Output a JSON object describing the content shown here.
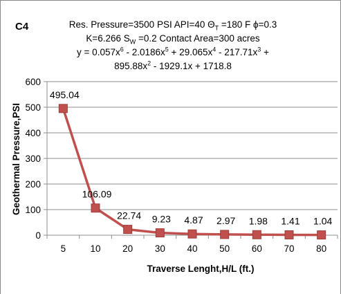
{
  "panel_label": "C4",
  "title_lines": {
    "l1_a": "Res. Pressure=3500 PSI API=40 Θ",
    "l1_sub": "T",
    "l1_b": " =180 F ϕ=0.3",
    "l2_a": "K=6.266   S",
    "l2_sub": "W",
    "l2_b": " =0.2 Contact Area=300 acres",
    "l3_a": "y = 0.057x",
    "l3_s1": "6",
    "l3_b": " - 2.0186x",
    "l3_s2": "5",
    "l3_c": " + 29.065x",
    "l3_s3": "4",
    "l3_d": " - 217.71x",
    "l3_s4": "3",
    "l3_e": " +",
    "l4_a": "895.88x",
    "l4_s1": "2",
    "l4_b": " - 1929.1x + 1718.8"
  },
  "chart_data": {
    "type": "line",
    "categories": [
      "5",
      "10",
      "20",
      "30",
      "40",
      "50",
      "60",
      "70",
      "80"
    ],
    "series": [
      {
        "values": [
          495.04,
          106.09,
          22.74,
          9.23,
          4.87,
          2.97,
          1.98,
          1.41,
          1.04
        ]
      }
    ],
    "data_labels": [
      "495.04",
      "106.09",
      "22.74",
      "9.23",
      "4.87",
      "2.97",
      "1.98",
      "1.41",
      "1.04"
    ],
    "xlabel": "Traverse Lenght,H/L (ft.)",
    "ylabel": "Geothermal Pressure,PSI",
    "ylim": [
      0,
      600
    ],
    "yticks": [
      0,
      100,
      200,
      300,
      400,
      500,
      600
    ],
    "grid": true,
    "legend": "none",
    "series_color": "#c0504d",
    "marker": "square"
  }
}
